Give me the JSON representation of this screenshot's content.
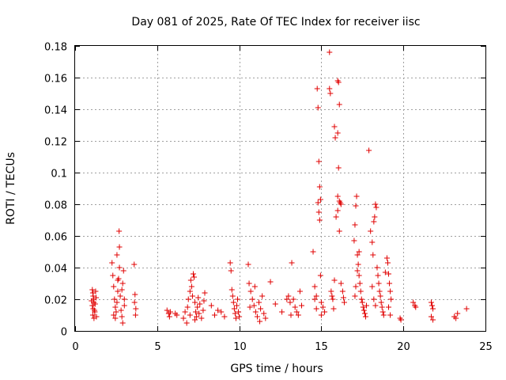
{
  "chart_data": {
    "type": "scatter",
    "title": "Day 081 of 2025, Rate Of TEC Index for receiver iisc",
    "xlabel": "GPS time / hours",
    "ylabel": "ROTI / TECUs",
    "xlim": [
      0,
      25
    ],
    "ylim": [
      0,
      0.18
    ],
    "xticks": [
      "0",
      "5",
      "10",
      "15",
      "20",
      "25"
    ],
    "yticks": [
      "0",
      "0.02",
      "0.04",
      "0.06",
      "0.08",
      "0.1",
      "0.12",
      "0.14",
      "0.16",
      "0.18"
    ],
    "grid": true,
    "series": [
      {
        "name": "ROTI",
        "color": "#e00000",
        "marker": "plus",
        "points": [
          [
            1.05,
            0.026
          ],
          [
            1.08,
            0.024
          ],
          [
            1.1,
            0.022
          ],
          [
            1.12,
            0.02
          ],
          [
            1.15,
            0.018
          ],
          [
            1.05,
            0.016
          ],
          [
            1.1,
            0.014
          ],
          [
            1.2,
            0.012
          ],
          [
            1.08,
            0.01
          ],
          [
            1.15,
            0.008
          ],
          [
            1.25,
            0.025
          ],
          [
            1.22,
            0.017
          ],
          [
            1.18,
            0.013
          ],
          [
            1.28,
            0.021
          ],
          [
            1.0,
            0.019
          ],
          [
            1.3,
            0.009
          ],
          [
            2.25,
            0.043
          ],
          [
            2.3,
            0.035
          ],
          [
            2.35,
            0.028
          ],
          [
            2.4,
            0.02
          ],
          [
            2.45,
            0.015
          ],
          [
            2.5,
            0.012
          ],
          [
            2.55,
            0.018
          ],
          [
            2.6,
            0.025
          ],
          [
            2.65,
            0.033
          ],
          [
            2.7,
            0.04
          ],
          [
            2.75,
            0.022
          ],
          [
            2.8,
            0.013
          ],
          [
            2.85,
            0.009
          ],
          [
            2.9,
            0.03
          ],
          [
            2.95,
            0.038
          ],
          [
            3.0,
            0.016
          ],
          [
            2.55,
            0.048
          ],
          [
            2.7,
            0.053
          ],
          [
            2.68,
            0.063
          ],
          [
            2.35,
            0.01
          ],
          [
            2.45,
            0.008
          ],
          [
            2.9,
            0.005
          ],
          [
            3.0,
            0.02
          ],
          [
            2.85,
            0.026
          ],
          [
            2.6,
            0.032
          ],
          [
            3.6,
            0.042
          ],
          [
            3.65,
            0.023
          ],
          [
            3.7,
            0.014
          ],
          [
            3.62,
            0.018
          ],
          [
            3.68,
            0.01
          ],
          [
            5.6,
            0.013
          ],
          [
            5.7,
            0.011
          ],
          [
            5.8,
            0.012
          ],
          [
            5.75,
            0.009
          ],
          [
            6.1,
            0.011
          ],
          [
            6.2,
            0.01
          ],
          [
            6.6,
            0.008
          ],
          [
            6.7,
            0.012
          ],
          [
            6.8,
            0.005
          ],
          [
            6.85,
            0.015
          ],
          [
            6.9,
            0.02
          ],
          [
            7.0,
            0.025
          ],
          [
            7.05,
            0.032
          ],
          [
            7.1,
            0.028
          ],
          [
            7.15,
            0.022
          ],
          [
            7.2,
            0.036
          ],
          [
            7.25,
            0.034
          ],
          [
            7.3,
            0.018
          ],
          [
            7.35,
            0.012
          ],
          [
            7.4,
            0.009
          ],
          [
            7.45,
            0.015
          ],
          [
            7.5,
            0.021
          ],
          [
            7.55,
            0.011
          ],
          [
            7.6,
            0.017
          ],
          [
            7.7,
            0.008
          ],
          [
            7.8,
            0.013
          ],
          [
            7.85,
            0.019
          ],
          [
            7.9,
            0.024
          ],
          [
            7.3,
            0.007
          ],
          [
            7.0,
            0.01
          ],
          [
            8.3,
            0.016
          ],
          [
            8.5,
            0.01
          ],
          [
            8.7,
            0.013
          ],
          [
            8.9,
            0.012
          ],
          [
            9.1,
            0.009
          ],
          [
            9.45,
            0.043
          ],
          [
            9.5,
            0.038
          ],
          [
            9.55,
            0.026
          ],
          [
            9.6,
            0.022
          ],
          [
            9.65,
            0.018
          ],
          [
            9.7,
            0.014
          ],
          [
            9.75,
            0.011
          ],
          [
            9.8,
            0.008
          ],
          [
            9.85,
            0.016
          ],
          [
            9.9,
            0.02
          ],
          [
            9.95,
            0.012
          ],
          [
            10.0,
            0.009
          ],
          [
            10.55,
            0.042
          ],
          [
            10.6,
            0.03
          ],
          [
            10.7,
            0.025
          ],
          [
            10.8,
            0.02
          ],
          [
            10.9,
            0.016
          ],
          [
            11.0,
            0.012
          ],
          [
            11.1,
            0.009
          ],
          [
            11.2,
            0.018
          ],
          [
            11.3,
            0.014
          ],
          [
            11.4,
            0.022
          ],
          [
            11.5,
            0.011
          ],
          [
            11.6,
            0.008
          ],
          [
            10.65,
            0.015
          ],
          [
            10.95,
            0.028
          ],
          [
            11.25,
            0.006
          ],
          [
            11.9,
            0.031
          ],
          [
            12.2,
            0.017
          ],
          [
            12.6,
            0.012
          ],
          [
            12.9,
            0.02
          ],
          [
            13.0,
            0.022
          ],
          [
            13.1,
            0.018
          ],
          [
            13.2,
            0.043
          ],
          [
            13.3,
            0.02
          ],
          [
            13.4,
            0.015
          ],
          [
            13.5,
            0.012
          ],
          [
            13.6,
            0.01
          ],
          [
            13.7,
            0.025
          ],
          [
            13.8,
            0.016
          ],
          [
            13.15,
            0.01
          ],
          [
            14.5,
            0.05
          ],
          [
            14.6,
            0.028
          ],
          [
            14.7,
            0.022
          ],
          [
            14.75,
            0.153
          ],
          [
            14.8,
            0.141
          ],
          [
            14.85,
            0.107
          ],
          [
            14.9,
            0.091
          ],
          [
            14.95,
            0.083
          ],
          [
            14.8,
            0.081
          ],
          [
            14.85,
            0.075
          ],
          [
            14.9,
            0.07
          ],
          [
            14.95,
            0.035
          ],
          [
            15.0,
            0.018
          ],
          [
            15.1,
            0.015
          ],
          [
            15.2,
            0.012
          ],
          [
            15.0,
            0.01
          ],
          [
            14.7,
            0.014
          ],
          [
            14.6,
            0.02
          ],
          [
            15.5,
            0.176
          ],
          [
            15.5,
            0.153
          ],
          [
            15.55,
            0.15
          ],
          [
            15.6,
            0.025
          ],
          [
            15.65,
            0.022
          ],
          [
            15.7,
            0.02
          ],
          [
            15.8,
            0.129
          ],
          [
            15.85,
            0.122
          ],
          [
            16.0,
            0.158
          ],
          [
            16.05,
            0.157
          ],
          [
            16.1,
            0.143
          ],
          [
            16.0,
            0.125
          ],
          [
            16.05,
            0.103
          ],
          [
            16.0,
            0.085
          ],
          [
            16.1,
            0.082
          ],
          [
            16.15,
            0.081
          ],
          [
            16.2,
            0.08
          ],
          [
            16.0,
            0.076
          ],
          [
            15.9,
            0.072
          ],
          [
            16.1,
            0.063
          ],
          [
            16.2,
            0.03
          ],
          [
            16.3,
            0.025
          ],
          [
            16.35,
            0.021
          ],
          [
            16.4,
            0.018
          ],
          [
            15.8,
            0.032
          ],
          [
            15.75,
            0.014
          ],
          [
            17.0,
            0.057
          ],
          [
            17.05,
            0.067
          ],
          [
            17.1,
            0.079
          ],
          [
            17.15,
            0.085
          ],
          [
            17.2,
            0.048
          ],
          [
            17.25,
            0.042
          ],
          [
            17.3,
            0.035
          ],
          [
            17.35,
            0.03
          ],
          [
            17.4,
            0.025
          ],
          [
            17.45,
            0.02
          ],
          [
            17.5,
            0.018
          ],
          [
            17.55,
            0.015
          ],
          [
            17.6,
            0.013
          ],
          [
            17.65,
            0.011
          ],
          [
            17.7,
            0.009
          ],
          [
            17.3,
            0.05
          ],
          [
            17.2,
            0.038
          ],
          [
            17.1,
            0.028
          ],
          [
            17.05,
            0.022
          ],
          [
            17.75,
            0.016
          ],
          [
            17.9,
            0.114
          ],
          [
            18.0,
            0.063
          ],
          [
            18.1,
            0.056
          ],
          [
            18.15,
            0.048
          ],
          [
            18.2,
            0.069
          ],
          [
            18.25,
            0.072
          ],
          [
            18.3,
            0.08
          ],
          [
            18.35,
            0.078
          ],
          [
            18.4,
            0.04
          ],
          [
            18.45,
            0.035
          ],
          [
            18.5,
            0.03
          ],
          [
            18.55,
            0.025
          ],
          [
            18.6,
            0.022
          ],
          [
            18.65,
            0.018
          ],
          [
            18.7,
            0.015
          ],
          [
            18.75,
            0.012
          ],
          [
            18.8,
            0.01
          ],
          [
            18.2,
            0.02
          ],
          [
            18.3,
            0.016
          ],
          [
            18.1,
            0.028
          ],
          [
            19.0,
            0.046
          ],
          [
            19.05,
            0.043
          ],
          [
            19.1,
            0.036
          ],
          [
            19.15,
            0.03
          ],
          [
            19.2,
            0.025
          ],
          [
            19.25,
            0.02
          ],
          [
            18.9,
            0.037
          ],
          [
            19.1,
            0.015
          ],
          [
            19.2,
            0.01
          ],
          [
            19.8,
            0.008
          ],
          [
            19.85,
            0.007
          ],
          [
            20.6,
            0.018
          ],
          [
            20.7,
            0.016
          ],
          [
            20.75,
            0.015
          ],
          [
            21.7,
            0.018
          ],
          [
            21.75,
            0.016
          ],
          [
            21.8,
            0.014
          ],
          [
            21.7,
            0.009
          ],
          [
            21.8,
            0.007
          ],
          [
            23.1,
            0.009
          ],
          [
            23.2,
            0.008
          ],
          [
            23.3,
            0.011
          ],
          [
            23.85,
            0.014
          ]
        ]
      }
    ]
  }
}
